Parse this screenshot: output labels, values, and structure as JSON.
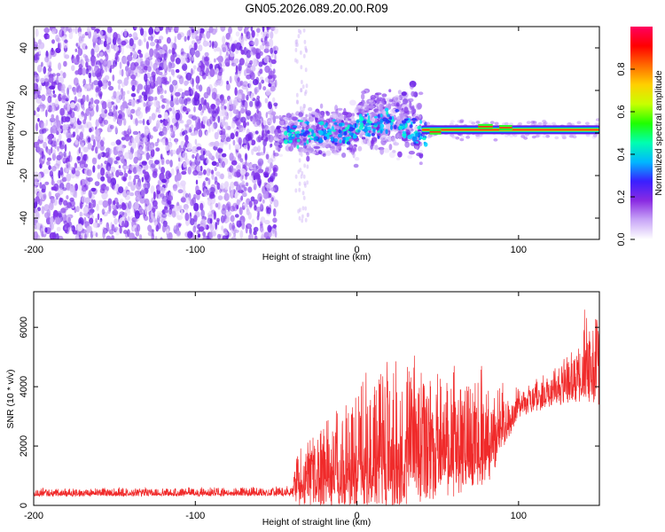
{
  "title": "GN05.2026.089.20.00.R09",
  "colors": {
    "snr_line": "#f02a2a",
    "spectral_base": "#7a2cf0",
    "colorbar_stops": [
      "#ffffff",
      "#c9a7f7",
      "#8a2be2",
      "#3a1fff",
      "#00b7ff",
      "#00ffb0",
      "#1fff00",
      "#c8ff00",
      "#ffd000",
      "#ff6a00",
      "#ff0000",
      "#ff0060"
    ]
  },
  "chart_data": [
    {
      "type": "heatmap",
      "xlabel": "Height of straight line (km)",
      "ylabel": "Frequency (Hz)",
      "xlim": [
        -200,
        150
      ],
      "ylim": [
        -50,
        50
      ],
      "x_ticks": [
        "-200",
        "-100",
        "0",
        "100"
      ],
      "y_ticks": [
        "40",
        "20",
        "0",
        "-20",
        "-40"
      ],
      "colorbar": {
        "label": "Normalized spectral amplitude",
        "range": [
          0,
          1
        ],
        "ticks": [
          "0.0",
          "0.2",
          "0.4",
          "0.6",
          "0.8"
        ]
      },
      "features": {
        "noise_region_km": [
          -200,
          -50
        ],
        "transition_km": [
          -50,
          40
        ],
        "band_center_hz": 1.5,
        "band_region_km": [
          40,
          150
        ]
      }
    },
    {
      "type": "line",
      "xlabel": "Height of straight line (km)",
      "ylabel": "SNR (10 * v/v)",
      "xlim": [
        -200,
        150
      ],
      "ylim": [
        0,
        7200
      ],
      "x_ticks": [
        "-200",
        "-100",
        "0",
        "100"
      ],
      "y_ticks": [
        "6000",
        "4000",
        "2000",
        "0"
      ],
      "envelope": {
        "x": [
          -200,
          -60,
          -40,
          -39,
          -20,
          0,
          20,
          40,
          60,
          80,
          100,
          120,
          140,
          150
        ],
        "baseline": [
          380,
          400,
          420,
          550,
          700,
          1000,
          1300,
          1500,
          1600,
          1800,
          3200,
          3700,
          4200,
          4300
        ],
        "amplitude": [
          150,
          160,
          180,
          900,
          1500,
          2200,
          2800,
          2600,
          2200,
          2000,
          500,
          600,
          1200,
          1600
        ]
      }
    }
  ]
}
